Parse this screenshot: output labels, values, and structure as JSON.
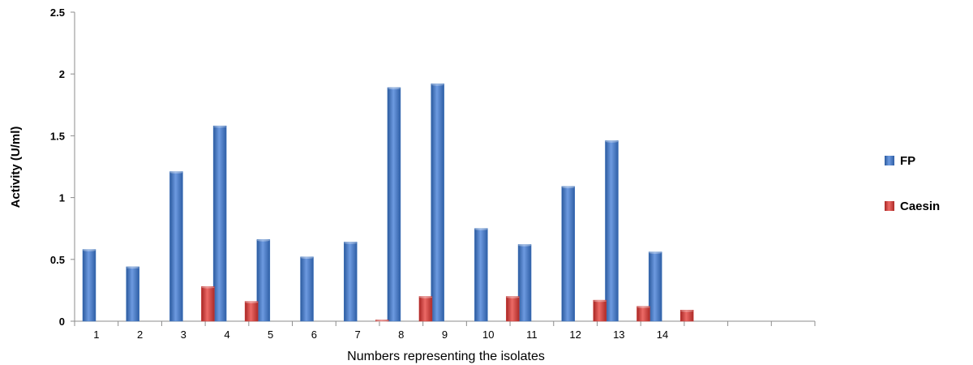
{
  "chart_data": {
    "type": "bar",
    "title": "",
    "xlabel": "Numbers representing the isolates",
    "ylabel": "Activity (U/ml)",
    "ylim": [
      0,
      2.5
    ],
    "yticks": [
      "0",
      "0.5",
      "1",
      "1.5",
      "2",
      "2.5"
    ],
    "categories": [
      "1",
      "2",
      "3",
      "4",
      "5",
      "6",
      "7",
      "8",
      "9",
      "10",
      "11",
      "12",
      "13",
      "14",
      "",
      "",
      ""
    ],
    "series": [
      {
        "name": "FP",
        "color": "#3f74bd",
        "values": [
          0.58,
          0.44,
          1.21,
          1.58,
          0.66,
          0.52,
          0.64,
          1.89,
          1.92,
          0.75,
          0.62,
          1.09,
          1.46,
          0.56,
          null,
          null,
          null
        ]
      },
      {
        "name": "Caesin",
        "color": "#cc3a36",
        "values": [
          0,
          0,
          0.28,
          0.16,
          0,
          0,
          0.01,
          0.2,
          0,
          0.2,
          0,
          0.17,
          0.12,
          0.09,
          null,
          null,
          null
        ]
      }
    ],
    "grid": false,
    "legend_position": "right"
  }
}
